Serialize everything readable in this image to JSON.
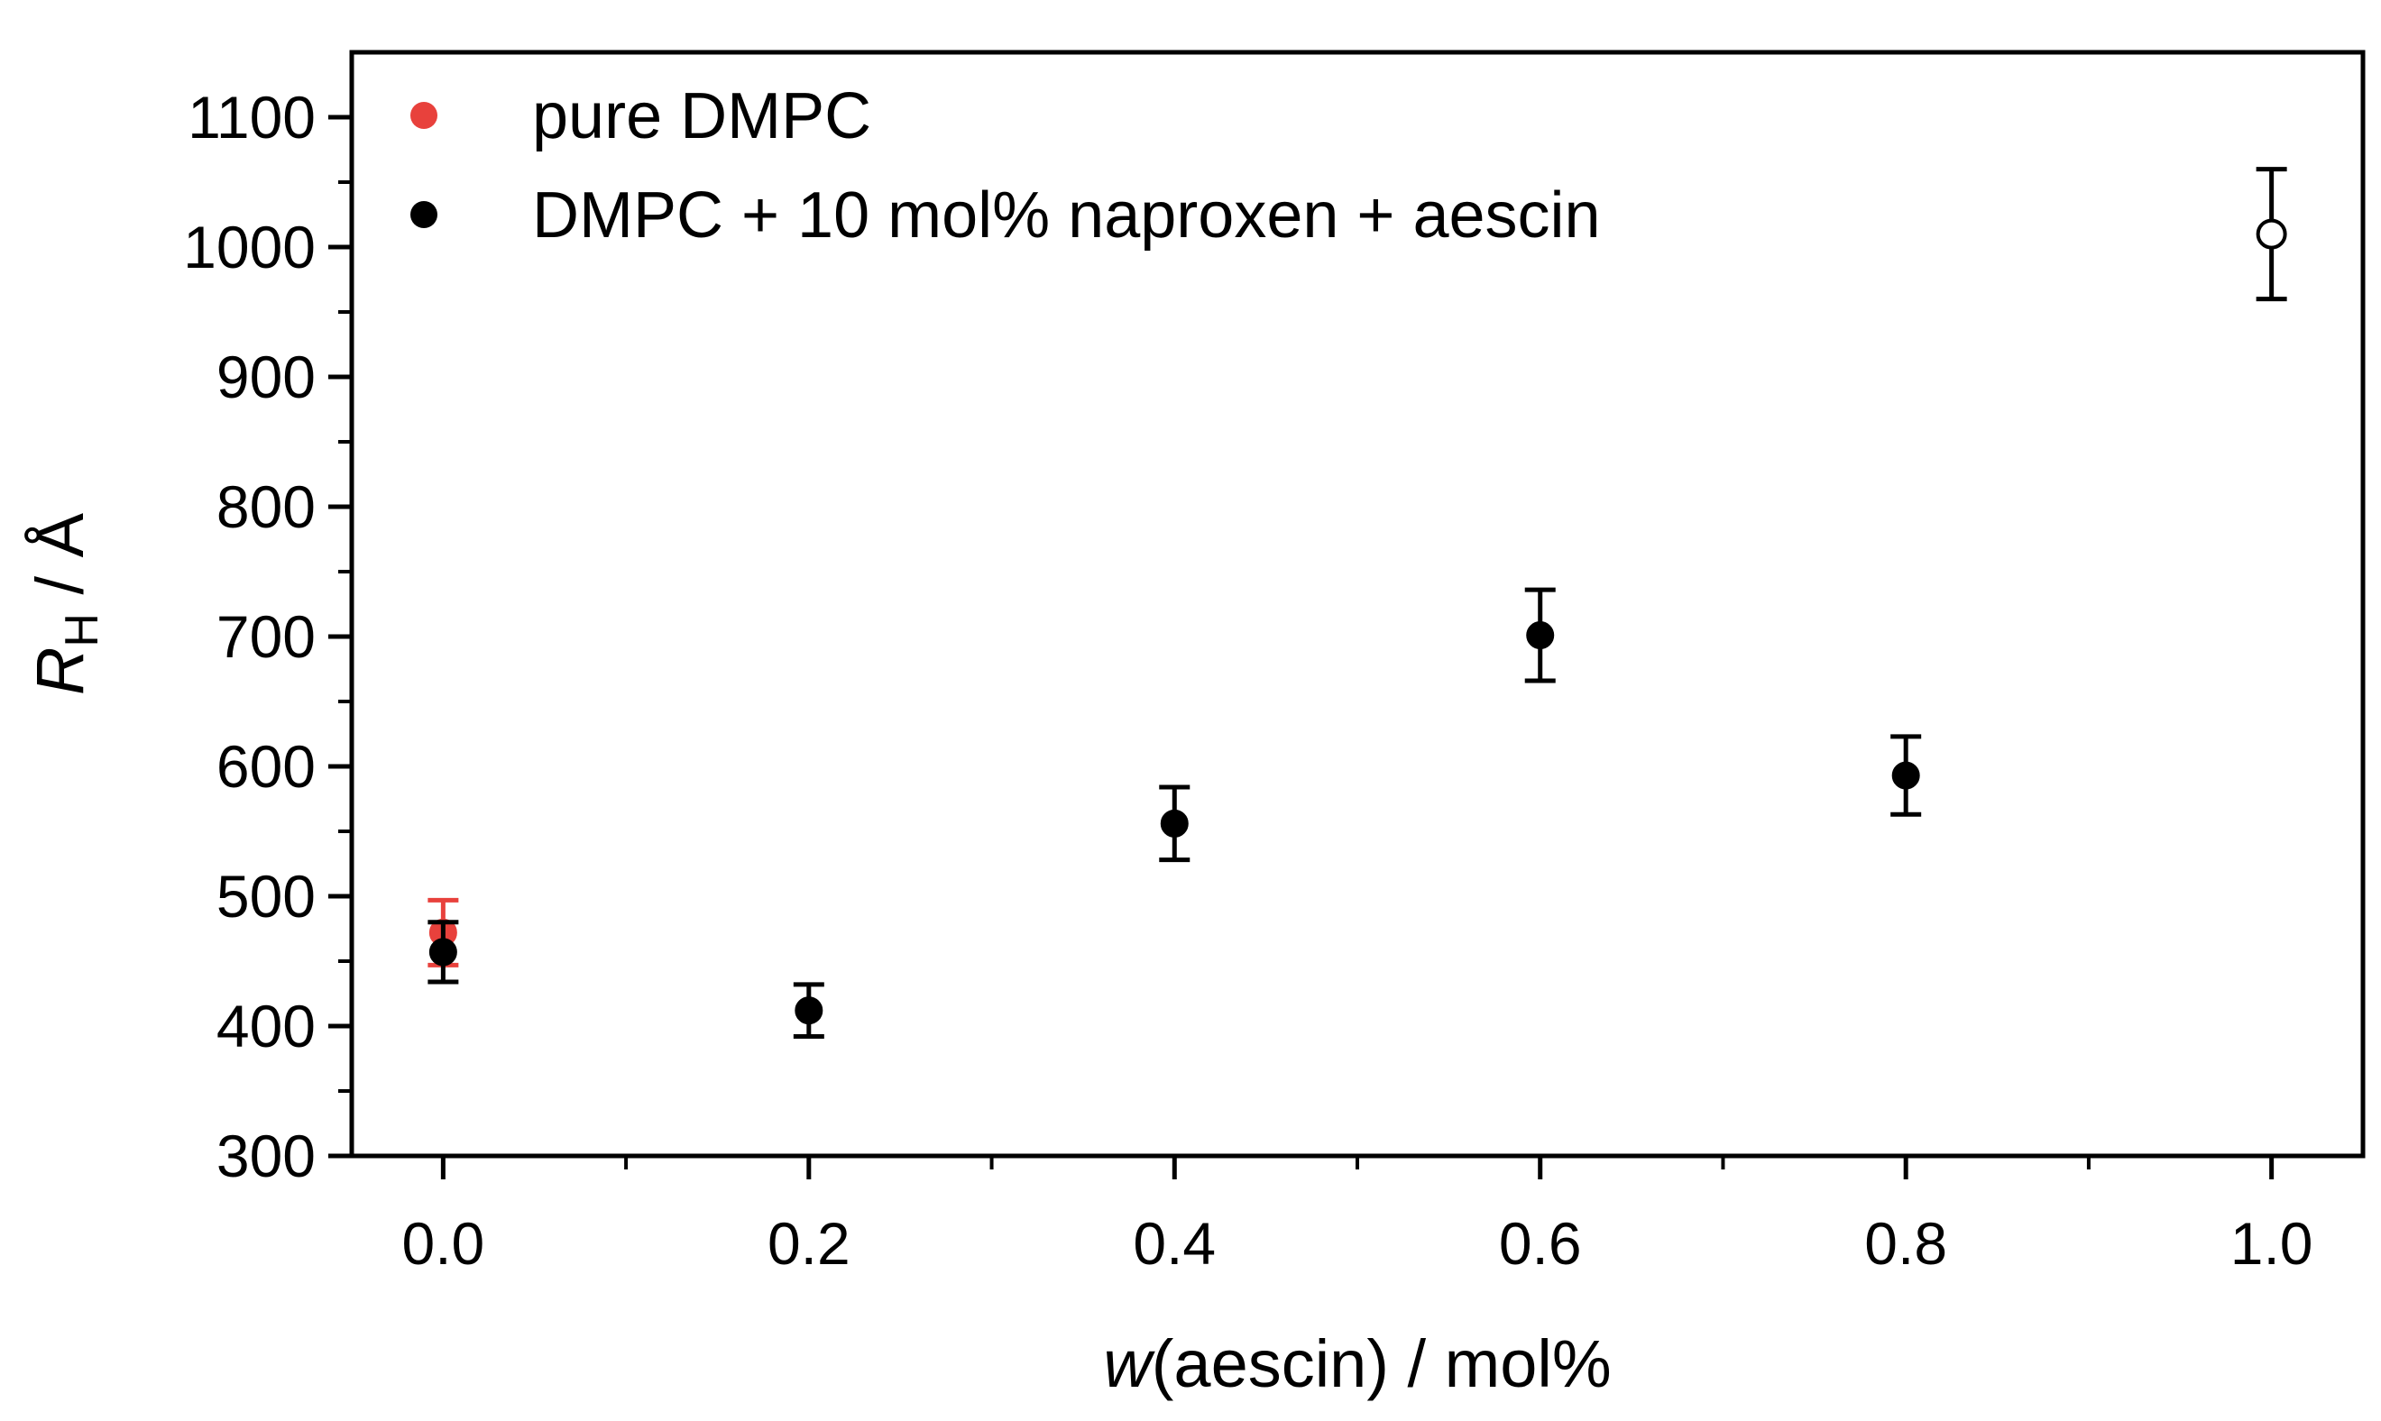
{
  "chart_data": {
    "type": "scatter",
    "title": "",
    "xlabel": {
      "italic": "w",
      "rest": "(aescin) / mol%"
    },
    "ylabel": {
      "symbol": "R",
      "subscript": "H",
      "rest": " / Å"
    },
    "xlim": [
      -0.05,
      1.05
    ],
    "ylim": [
      300,
      1150
    ],
    "xticks": [
      0.0,
      0.2,
      0.4,
      0.6,
      0.8,
      1.0
    ],
    "xtick_labels": [
      "0.0",
      "0.2",
      "0.4",
      "0.6",
      "0.8",
      "1.0"
    ],
    "xminor": [
      0.1,
      0.3,
      0.5,
      0.7,
      0.9
    ],
    "yticks": [
      300,
      400,
      500,
      600,
      700,
      800,
      900,
      1000,
      1100
    ],
    "ytick_labels": [
      "300",
      "400",
      "500",
      "600",
      "700",
      "800",
      "900",
      "1000",
      "1100"
    ],
    "yminor": [
      350,
      450,
      550,
      650,
      750,
      850,
      950,
      1050
    ],
    "grid": false,
    "legend_position": "top-left",
    "series": [
      {
        "name": "pure DMPC",
        "color": "#e8413c",
        "points": [
          {
            "x": 0.0,
            "y": 472,
            "err": 25,
            "filled": true
          }
        ]
      },
      {
        "name": "DMPC + 10 mol% naproxen + aescin",
        "color": "#000000",
        "points": [
          {
            "x": 0.0,
            "y": 457,
            "err": 23,
            "filled": true
          },
          {
            "x": 0.2,
            "y": 412,
            "err": 20,
            "filled": true
          },
          {
            "x": 0.4,
            "y": 556,
            "err": 28,
            "filled": true
          },
          {
            "x": 0.6,
            "y": 701,
            "err": 35,
            "filled": true
          },
          {
            "x": 0.8,
            "y": 593,
            "err": 30,
            "filled": true
          },
          {
            "x": 1.0,
            "y": 1010,
            "err": 50,
            "filled": false
          }
        ]
      }
    ]
  }
}
